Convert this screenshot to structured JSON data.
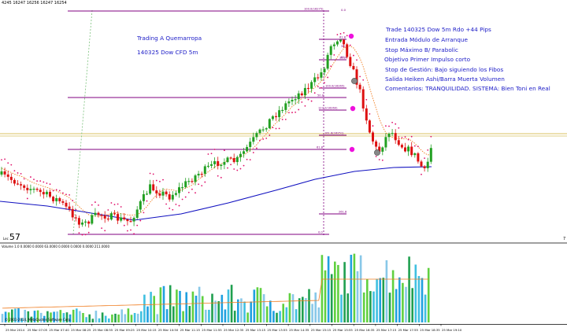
{
  "window": {
    "symbol_bar": "4245  16247 16256 16247 16254",
    "countdown_prefix": "Lec",
    "countdown_value": "57"
  },
  "annotations": {
    "title": "Trading A Quemarropa",
    "subtitle": "140325 Dow CFD 5m",
    "notes": [
      "Trade 140325 Dow 5m Rdo +44 Pips",
      "Entrada Módulo de Arranque",
      "Stop Máximo B/ Parabolic",
      "Objetivo Primer Impulso corto",
      "Stop de Gestión: Bajo siguiendo los Fibos",
      "Salida  Heiken Ashi/Barra Muerta Volumen",
      "Comentarios: TRANQUILIDAD. SISTEMA: Bien Toni en Real"
    ]
  },
  "fibonacci": {
    "levels": [
      {
        "label": "100.0(16275)"
      },
      {
        "label": "61.8"
      },
      {
        "label": "38.2"
      },
      {
        "label": "100.0(16265)"
      },
      {
        "label": "50.0"
      },
      {
        "label": "127.2(16260)"
      },
      {
        "label": "161.8(16251)"
      },
      {
        "label": "61.8"
      },
      {
        "label": "261.8"
      },
      {
        "label": "0.0"
      }
    ],
    "right_labels": [
      "0.0",
      "38.2",
      "61.8"
    ]
  },
  "indicator": {
    "label": "Volume 1.0 0.0000 0.0000 63.0000 0.0000 0.0000 0.0000 211.0000",
    "copyright": "© 2001-2014, MetaQuotes Software Corp."
  },
  "time_axis": [
    "25 Mar 2014",
    "25 Mar 07:05",
    "25 Mar 07:40",
    "25 Mar 08:25",
    "25 Mar 08:55",
    "25 Mar 09:25",
    "25 Mar 10:15",
    "25 Mar 10:50",
    "25 Mar 11:15",
    "25 Mar 11:55",
    "25 Mar 12:35",
    "25 Mar 13:15",
    "25 Mar 13:55",
    "25 Mar 14:35",
    "25 Mar 15:15",
    "25 Mar 15:55",
    "25 Mar 16:35",
    "25 Mar 17:15",
    "25 Mar 17:55",
    "25 Mar 18:35",
    "25 Mar 19:10"
  ],
  "colors": {
    "bull": "#22a022",
    "bear": "#dd1010",
    "sar": "#e0106a",
    "slow_ma": "#1010c0",
    "fast_ma": "#f07d20",
    "fib": "#800080",
    "note": "#2020c8",
    "hline": "#d8c060"
  }
}
